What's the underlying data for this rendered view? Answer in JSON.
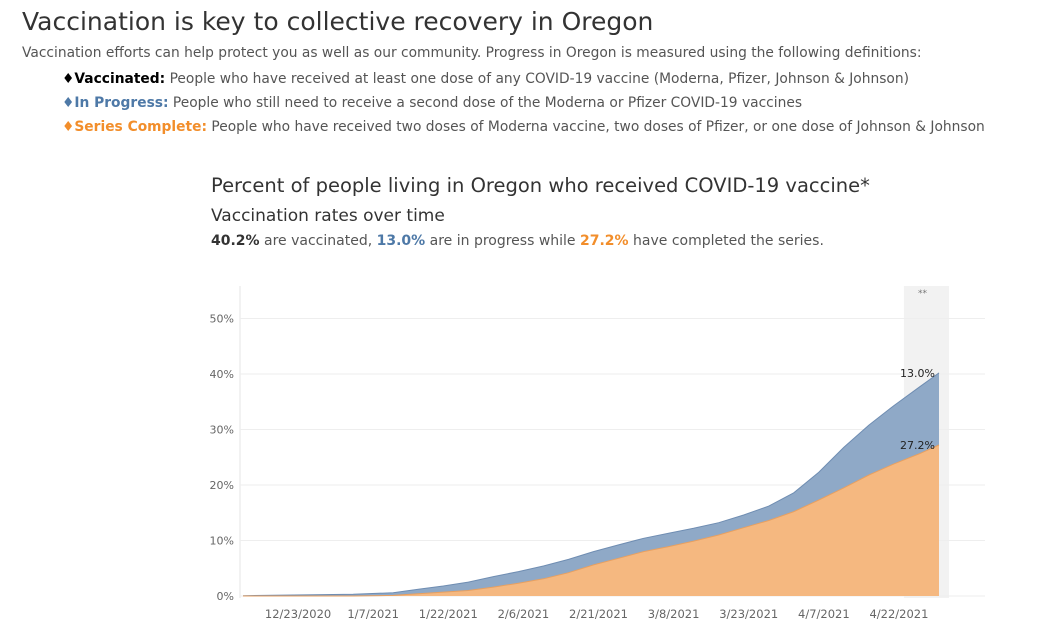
{
  "header": {
    "title": "Vaccination is key to collective recovery in Oregon",
    "intro": "Vaccination efforts can help protect you as well as our community. Progress in Oregon is measured using the following definitions:"
  },
  "definitions": [
    {
      "bullet": "♦",
      "term": "Vaccinated:",
      "desc": " People who have received at least one dose of any COVID-19 vaccine (Moderna, Pfizer, Johnson & Johnson)",
      "color": "#000000"
    },
    {
      "bullet": "♦",
      "term": "In Progress:",
      "desc": " People who still need to receive a second dose of the Moderna or Pfizer COVID-19 vaccines",
      "color": "#4e79a7"
    },
    {
      "bullet": "♦",
      "term": "Series Complete:",
      "desc": " People who have received two doses of Moderna vaccine, two doses of Pfizer, or one dose of Johnson & Johnson",
      "color": "#f28e2b"
    }
  ],
  "chart_header": {
    "title": "Percent of people living in Oregon who received COVID-19 vaccine*",
    "subtitle": "Vaccination rates over time",
    "vaccinated_value": "40.2%",
    "vaccinated_text": " are vaccinated, ",
    "in_progress_value": "13.0%",
    "in_progress_text": " are in progress while ",
    "complete_value": "27.2%",
    "complete_text": " have completed the series."
  },
  "colors": {
    "in_progress": "#4e79a7",
    "complete": "#f28e2b",
    "in_progress_fill": "#8fa9c7",
    "complete_fill": "#f5b880",
    "grid": "#eeeeee",
    "highlight": "#f2f2f2"
  },
  "chart_data": {
    "type": "area",
    "title": "Vaccination rates over time",
    "xlabel": "",
    "ylabel": "",
    "ylim": [
      0,
      55
    ],
    "y_ticks": [
      0,
      10,
      20,
      30,
      40,
      50
    ],
    "y_tick_labels": [
      "0%",
      "10%",
      "20%",
      "30%",
      "40%",
      "50%"
    ],
    "x_ticks": [
      11,
      26,
      41,
      56,
      71,
      86,
      101,
      116,
      131
    ],
    "x_tick_labels": [
      "12/23/2020",
      "1/7/2021",
      "1/22/2021",
      "2/6/2021",
      "2/21/2021",
      "3/8/2021",
      "3/23/2021",
      "4/7/2021",
      "4/22/2021"
    ],
    "x_range": [
      0,
      140
    ],
    "x_note": "Day index where 0 = 12/12/2020",
    "highlight_range": [
      134,
      139
    ],
    "highlight_label": "**",
    "stacked": true,
    "x": [
      0,
      12,
      22,
      30,
      35,
      40,
      45,
      50,
      55,
      60,
      65,
      70,
      75,
      80,
      85,
      90,
      95,
      100,
      105,
      110,
      115,
      120,
      125,
      130,
      135,
      139
    ],
    "series": [
      {
        "name": "Series Complete",
        "values": [
          0,
          0,
          0,
          0.1,
          0.4,
          0.7,
          1.0,
          1.6,
          2.3,
          3.1,
          4.2,
          5.6,
          6.8,
          8.0,
          8.9,
          9.9,
          11.0,
          12.3,
          13.6,
          15.2,
          17.3,
          19.5,
          21.8,
          23.8,
          25.6,
          27.2
        ],
        "end_label": "27.2%"
      },
      {
        "name": "In Progress",
        "values": [
          0.05,
          0.2,
          0.3,
          0.5,
          0.8,
          1.1,
          1.5,
          1.9,
          2.1,
          2.3,
          2.4,
          2.4,
          2.4,
          2.4,
          2.4,
          2.3,
          2.2,
          2.3,
          2.6,
          3.4,
          5.0,
          7.3,
          9.0,
          10.5,
          12.0,
          13.0
        ],
        "end_label": "13.0%"
      }
    ]
  }
}
